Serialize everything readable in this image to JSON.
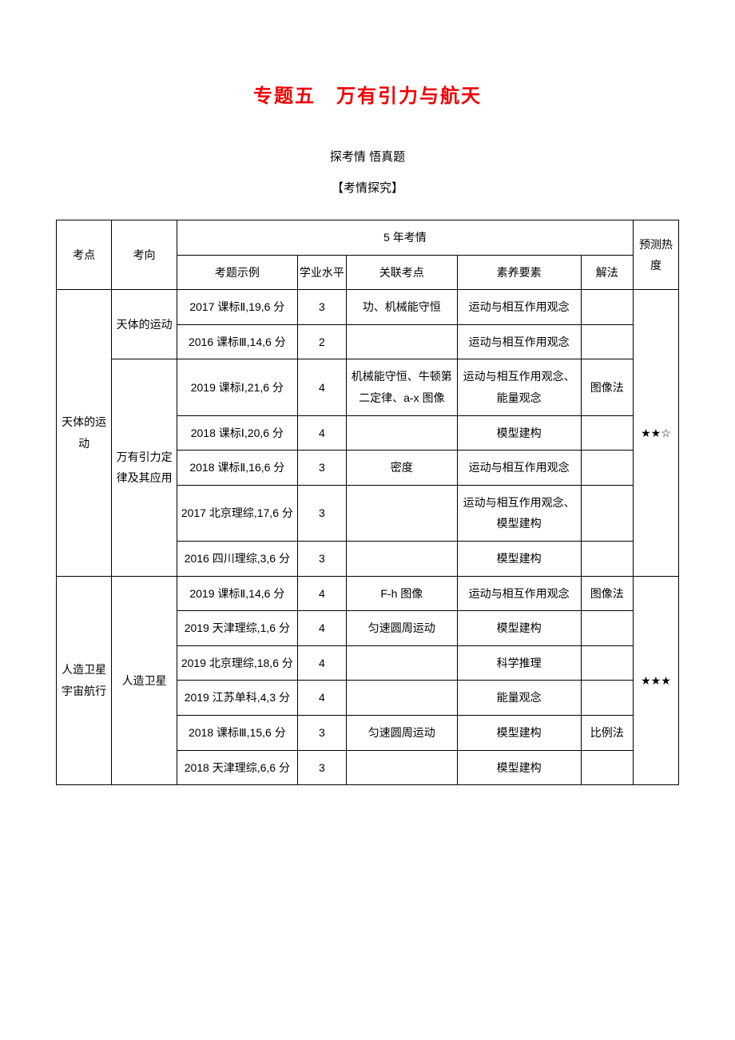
{
  "title": "专题五 万有引力与航天",
  "subtitle": "探考情 悟真题",
  "section_label": "【考情探究】",
  "headers": {
    "kaodian": "考点",
    "kaoxiang": "考向",
    "five_year": "5 年考情",
    "yuce": "预测热度",
    "kaoti": "考题示例",
    "xueye": "学业水平",
    "guanlian": "关联考点",
    "suyang": "素养要素",
    "jiefa": "解法"
  },
  "groups": [
    {
      "kaodian": "天体的运动",
      "heat": "★★☆",
      "kaoxiang_groups": [
        {
          "kaoxiang": "天体的运动",
          "rows": [
            {
              "kaoti": "2017 课标Ⅱ,19,6 分",
              "xueye": "3",
              "guanlian": "功、机械能守恒",
              "suyang": "运动与相互作用观念",
              "jiefa": ""
            },
            {
              "kaoti": "2016 课标Ⅲ,14,6 分",
              "xueye": "2",
              "guanlian": "",
              "suyang": "运动与相互作用观念",
              "jiefa": ""
            }
          ]
        },
        {
          "kaoxiang": "万有引力定律及其应用",
          "rows": [
            {
              "kaoti": "2019 课标Ⅰ,21,6 分",
              "xueye": "4",
              "guanlian": "机械能守恒、牛顿第二定律、a-x 图像",
              "suyang": "运动与相互作用观念、能量观念",
              "jiefa": "图像法"
            },
            {
              "kaoti": "2018 课标Ⅰ,20,6 分",
              "xueye": "4",
              "guanlian": "",
              "suyang": "模型建构",
              "jiefa": ""
            },
            {
              "kaoti": "2018 课标Ⅱ,16,6 分",
              "xueye": "3",
              "guanlian": "密度",
              "suyang": "运动与相互作用观念",
              "jiefa": ""
            },
            {
              "kaoti": "2017 北京理综,17,6 分",
              "xueye": "3",
              "guanlian": "",
              "suyang": "运动与相互作用观念、\n模型建构",
              "jiefa": ""
            },
            {
              "kaoti": "2016 四川理综,3,6 分",
              "xueye": "3",
              "guanlian": "",
              "suyang": "模型建构",
              "jiefa": ""
            }
          ]
        }
      ]
    },
    {
      "kaodian": "人造卫星 宇宙航行",
      "heat": "★★★",
      "kaoxiang_groups": [
        {
          "kaoxiang": "人造卫星",
          "rows": [
            {
              "kaoti": "2019 课标Ⅱ,14,6 分",
              "xueye": "4",
              "guanlian": "F-h 图像",
              "suyang": "运动与相互作用观念",
              "jiefa": "图像法"
            },
            {
              "kaoti": "2019 天津理综,1,6 分",
              "xueye": "4",
              "guanlian": "匀速圆周运动",
              "suyang": "模型建构",
              "jiefa": ""
            },
            {
              "kaoti": "2019 北京理综,18,6 分",
              "xueye": "4",
              "guanlian": "",
              "suyang": "科学推理",
              "jiefa": ""
            },
            {
              "kaoti": "2019 江苏单科,4,3 分",
              "xueye": "4",
              "guanlian": "",
              "suyang": "能量观念",
              "jiefa": ""
            },
            {
              "kaoti": "2018 课标Ⅲ,15,6 分",
              "xueye": "3",
              "guanlian": "匀速圆周运动",
              "suyang": "模型建构",
              "jiefa": "比例法"
            },
            {
              "kaoti": "2018 天津理综,6,6 分",
              "xueye": "3",
              "guanlian": "",
              "suyang": "模型建构",
              "jiefa": ""
            }
          ]
        }
      ]
    }
  ]
}
